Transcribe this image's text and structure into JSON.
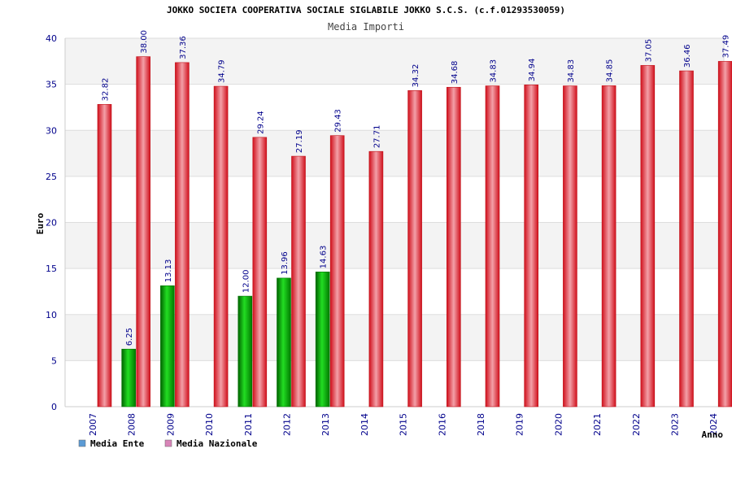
{
  "chart_data": {
    "type": "bar",
    "title": "JOKKO SOCIETA COOPERATIVA SOCIALE SIGLABILE JOKKO S.C.S. (c.f.01293530059)",
    "subtitle": "Media Importi",
    "xlabel": "Anno",
    "ylabel": "Euro",
    "ylim": [
      0,
      40
    ],
    "yticks": [
      0,
      5,
      10,
      15,
      20,
      25,
      30,
      35,
      40
    ],
    "grid": true,
    "legend_position": "bottom-left",
    "categories": [
      "2007",
      "2008",
      "2009",
      "2010",
      "2011",
      "2012",
      "2013",
      "2014",
      "2015",
      "2016",
      "2018",
      "2019",
      "2020",
      "2021",
      "2022",
      "2023",
      "2024"
    ],
    "series": [
      {
        "name": "Media Ente",
        "color": "#00aa00",
        "legend_color": "#5b9bd5",
        "values": [
          null,
          6.25,
          13.13,
          null,
          12.0,
          13.96,
          14.63,
          null,
          null,
          null,
          null,
          null,
          null,
          null,
          null,
          null,
          null
        ],
        "labels": [
          "",
          "6.25",
          "13.13",
          "",
          "12.00",
          "13.96",
          "14.63",
          "",
          "",
          "",
          "",
          "",
          "",
          "",
          "",
          "",
          ""
        ]
      },
      {
        "name": "Media Nazionale",
        "color": "#e8202a",
        "legend_color": "#d884b8",
        "values": [
          32.82,
          38.0,
          37.36,
          34.79,
          29.24,
          27.19,
          29.43,
          27.71,
          34.32,
          34.68,
          34.83,
          34.94,
          34.83,
          34.85,
          37.05,
          36.46,
          37.49
        ],
        "labels": [
          "32.82",
          "38.00",
          "37.36",
          "34.79",
          "29.24",
          "27.19",
          "29.43",
          "27.71",
          "34.32",
          "34.68",
          "34.83",
          "34.94",
          "34.83",
          "34.85",
          "37.05",
          "36.46",
          "37.49"
        ]
      }
    ]
  }
}
